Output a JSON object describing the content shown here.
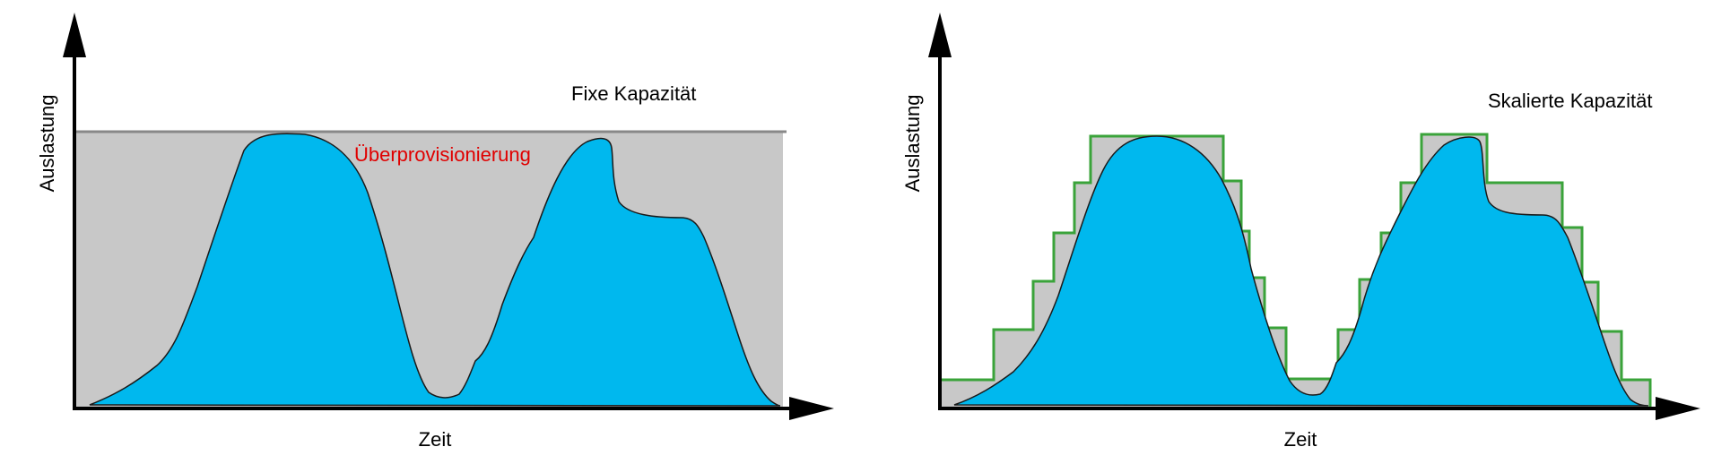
{
  "colors": {
    "background": "#ffffff",
    "capacity_fill": "#c8c8c8",
    "capacity_line": "#888888",
    "load_fill": "#00b8ee",
    "load_stroke": "#1a1a1a",
    "step_stroke": "#3aa33a",
    "overprovision_text": "#e00000",
    "axis": "#000000"
  },
  "left_panel": {
    "y_axis_label": "Auslastung",
    "x_axis_label": "Zeit",
    "capacity_label": "Fixe Kapazität",
    "overprovision_label": "Überprovisionierung"
  },
  "right_panel": {
    "y_axis_label": "Auslastung",
    "x_axis_label": "Zeit",
    "capacity_label": "Skalierte Kapazität"
  }
}
